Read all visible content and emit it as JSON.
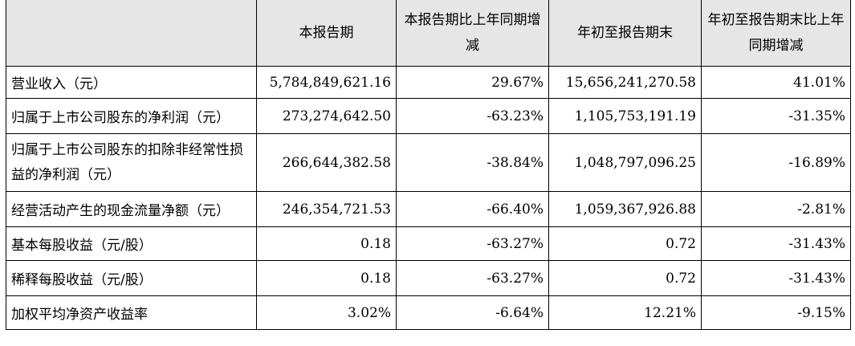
{
  "header": {
    "col0": "",
    "col1": "本报告期",
    "col2": "本报告期比上年同期增减",
    "col3": "年初至报告期末",
    "col4": "年初至报告期末比上年同期增减"
  },
  "rows": [
    {
      "label": "营业收入（元）",
      "current": "5,784,849,621.16",
      "current_change": "29.67%",
      "ytd": "15,656,241,270.58",
      "ytd_change": "41.01%"
    },
    {
      "label": "归属于上市公司股东的净利润（元）",
      "current": "273,274,642.50",
      "current_change": "-63.23%",
      "ytd": "1,105,753,191.19",
      "ytd_change": "-31.35%"
    },
    {
      "label": "归属于上市公司股东的扣除非经常性损益的净利润（元）",
      "current": "266,644,382.58",
      "current_change": "-38.84%",
      "ytd": "1,048,797,096.25",
      "ytd_change": "-16.89%"
    },
    {
      "label": "经营活动产生的现金流量净额（元）",
      "current": "246,354,721.53",
      "current_change": "-66.40%",
      "ytd": "1,059,367,926.88",
      "ytd_change": "-2.81%"
    },
    {
      "label": "基本每股收益（元/股）",
      "current": "0.18",
      "current_change": "-63.27%",
      "ytd": "0.72",
      "ytd_change": "-31.43%"
    },
    {
      "label": "稀释每股收益（元/股）",
      "current": "0.18",
      "current_change": "-63.27%",
      "ytd": "0.72",
      "ytd_change": "-31.43%"
    },
    {
      "label": "加权平均净资产收益率",
      "current": "3.02%",
      "current_change": "-6.64%",
      "ytd": "12.21%",
      "ytd_change": "-9.15%"
    }
  ]
}
